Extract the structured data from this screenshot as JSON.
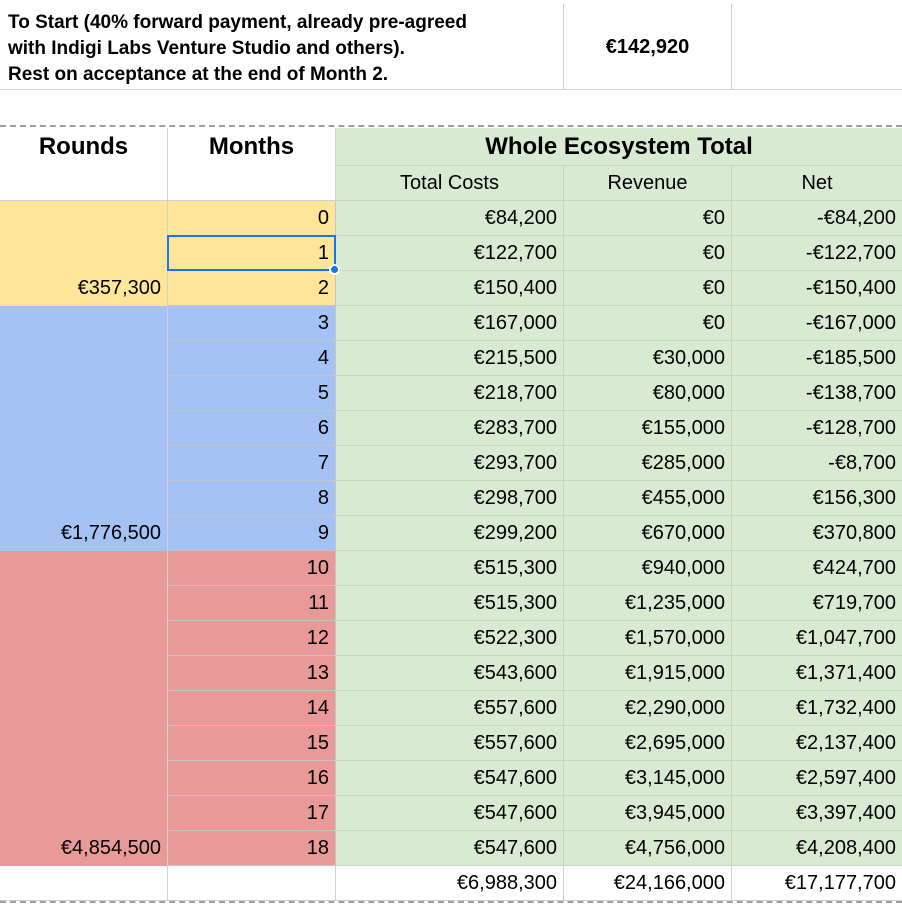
{
  "top_note": {
    "line1": "To Start (40% forward payment, already pre-agreed",
    "line2": "with Indigi Labs Venture Studio and others).",
    "line3": "Rest on acceptance at the end of Month 2.",
    "amount": "€142,920"
  },
  "headers": {
    "rounds": "Rounds",
    "months": "Months",
    "ecosystem": "Whole Ecosystem Total",
    "total_costs": "Total Costs",
    "revenue": "Revenue",
    "net": "Net"
  },
  "rounds": [
    {
      "total": "€357,300",
      "color": "#ffe599"
    },
    {
      "total": "€1,776,500",
      "color": "#a4c2f4"
    },
    {
      "total": "€4,854,500",
      "color": "#ea9999"
    }
  ],
  "green": "#d9ead3",
  "rows": [
    {
      "month": "0",
      "cost": "€84,200",
      "revenue": "€0",
      "net": "-€84,200"
    },
    {
      "month": "1",
      "cost": "€122,700",
      "revenue": "€0",
      "net": "-€122,700"
    },
    {
      "month": "2",
      "cost": "€150,400",
      "revenue": "€0",
      "net": "-€150,400"
    },
    {
      "month": "3",
      "cost": "€167,000",
      "revenue": "€0",
      "net": "-€167,000"
    },
    {
      "month": "4",
      "cost": "€215,500",
      "revenue": "€30,000",
      "net": "-€185,500"
    },
    {
      "month": "5",
      "cost": "€218,700",
      "revenue": "€80,000",
      "net": "-€138,700"
    },
    {
      "month": "6",
      "cost": "€283,700",
      "revenue": "€155,000",
      "net": "-€128,700"
    },
    {
      "month": "7",
      "cost": "€293,700",
      "revenue": "€285,000",
      "net": "-€8,700"
    },
    {
      "month": "8",
      "cost": "€298,700",
      "revenue": "€455,000",
      "net": "€156,300"
    },
    {
      "month": "9",
      "cost": "€299,200",
      "revenue": "€670,000",
      "net": "€370,800"
    },
    {
      "month": "10",
      "cost": "€515,300",
      "revenue": "€940,000",
      "net": "€424,700"
    },
    {
      "month": "11",
      "cost": "€515,300",
      "revenue": "€1,235,000",
      "net": "€719,700"
    },
    {
      "month": "12",
      "cost": "€522,300",
      "revenue": "€1,570,000",
      "net": "€1,047,700"
    },
    {
      "month": "13",
      "cost": "€543,600",
      "revenue": "€1,915,000",
      "net": "€1,371,400"
    },
    {
      "month": "14",
      "cost": "€557,600",
      "revenue": "€2,290,000",
      "net": "€1,732,400"
    },
    {
      "month": "15",
      "cost": "€557,600",
      "revenue": "€2,695,000",
      "net": "€2,137,400"
    },
    {
      "month": "16",
      "cost": "€547,600",
      "revenue": "€3,145,000",
      "net": "€2,597,400"
    },
    {
      "month": "17",
      "cost": "€547,600",
      "revenue": "€3,945,000",
      "net": "€3,397,400"
    },
    {
      "month": "18",
      "cost": "€547,600",
      "revenue": "€4,756,000",
      "net": "€4,208,400"
    }
  ],
  "totals": {
    "cost": "€6,988,300",
    "revenue": "€24,166,000",
    "net": "€17,177,700"
  }
}
